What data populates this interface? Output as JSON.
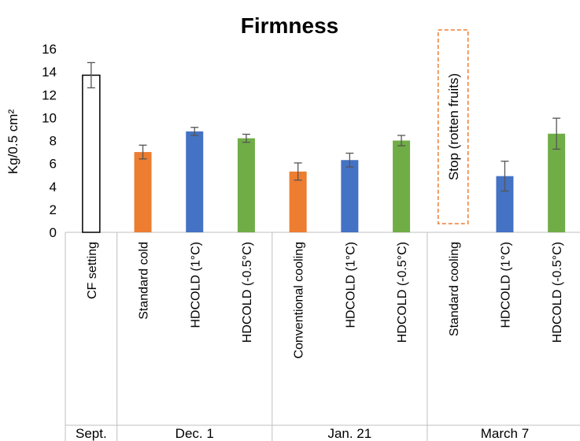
{
  "chart_data": {
    "type": "bar",
    "title": "Firmness",
    "ylabel": "Kg/0.5 cm²",
    "ylim": [
      0,
      16
    ],
    "yticks": [
      0,
      2,
      4,
      6,
      8,
      10,
      12,
      14,
      16
    ],
    "grid": false,
    "legend": "none",
    "categories": [
      "CF setting",
      "Standard cold",
      "HDCOLD (1°C)",
      "HDCOLD (-0.5°C)",
      "Conventional cooling",
      "HDCOLD (1°C)",
      "HDCOLD (-0.5°C)",
      "Standard cooling",
      "HDCOLD (1°C)",
      "HDCOLD (-0.5°C)"
    ],
    "values": [
      13.7,
      7.0,
      8.8,
      8.2,
      5.3,
      6.3,
      8.0,
      null,
      4.9,
      8.6
    ],
    "errors": [
      1.1,
      0.6,
      0.35,
      0.35,
      0.75,
      0.6,
      0.45,
      null,
      1.3,
      1.35
    ],
    "groups": [
      {
        "label": "Sept.",
        "start": 0,
        "end": 0
      },
      {
        "label": "Dec. 1",
        "start": 1,
        "end": 3
      },
      {
        "label": "Jan. 21",
        "start": 4,
        "end": 6
      },
      {
        "label": "March 7",
        "start": 7,
        "end": 9
      }
    ],
    "annotations": [
      {
        "text": "Stop (rotten fruits)",
        "category_index": 7
      }
    ],
    "colors": {
      "setting": "#ffffff",
      "setting_border": "#000000",
      "standard": "#ed7d31",
      "hdcold_1": "#4472c4",
      "hdcold_m05": "#70ad47",
      "annotation_border": "#ed7d31",
      "axis": "#bfbfbf",
      "error_bar": "#555555"
    },
    "bar_color_keys": [
      "setting",
      "standard",
      "hdcold_1",
      "hdcold_m05",
      "standard",
      "hdcold_1",
      "hdcold_m05",
      "standard",
      "hdcold_1",
      "hdcold_m05"
    ]
  }
}
